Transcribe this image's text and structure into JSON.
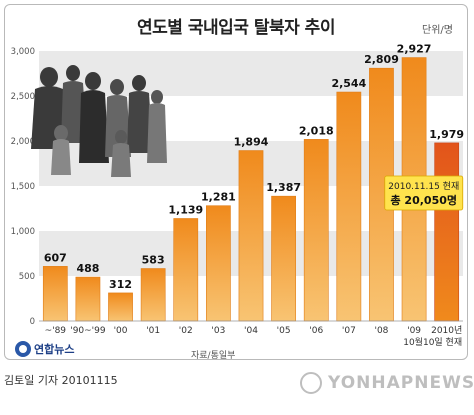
{
  "chart_data": {
    "type": "bar",
    "title": "연도별 국내입국 탈북자 추이",
    "unit_label": "단위/명",
    "categories": [
      "~'89",
      "'90~'99",
      "'00",
      "'01",
      "'02",
      "'03",
      "'04",
      "'05",
      "'06",
      "'07",
      "'08",
      "'09",
      "2010년"
    ],
    "category_sublabel": "10월10일 현재",
    "values": [
      607,
      488,
      312,
      583,
      1139,
      1281,
      1894,
      1387,
      2018,
      2544,
      2809,
      2927,
      1979
    ],
    "value_labels": [
      "607",
      "488",
      "312",
      "583",
      "1,139",
      "1,281",
      "1,894",
      "1,387",
      "2,018",
      "2,544",
      "2,809",
      "2,927",
      "1,979"
    ],
    "ylim": [
      0,
      3000
    ],
    "yticks": [
      "0",
      "500",
      "1,000",
      "1,500",
      "2,000",
      "2,500",
      "3,000"
    ],
    "ytick_values": [
      0,
      500,
      1000,
      1500,
      2000,
      2500,
      3000
    ],
    "annotation": {
      "line1": "2010.11.15 현재",
      "line2": "총 20,050명"
    },
    "source": "자료/통일부",
    "colors": {
      "bar_light": "#f8c473",
      "bar_dark": "#f08a1c",
      "bar_last": "#e2541b",
      "band": "#e9e9e9",
      "annotation_bg": "#ffe34d"
    },
    "grid_bands": true
  },
  "logo": {
    "text": "연합뉴스"
  },
  "credit": "김토일 기자 20101115",
  "watermark": "YONHAPNEWS"
}
